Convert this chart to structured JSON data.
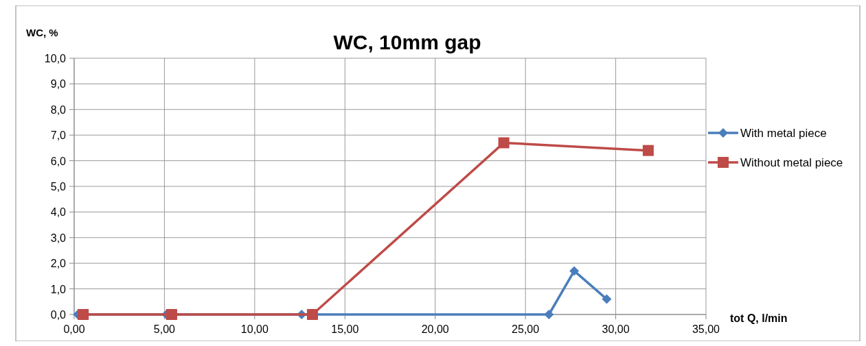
{
  "chart_data": {
    "type": "line",
    "title": "WC, 10mm gap",
    "xlabel": "tot Q, l/min",
    "ylabel": "WC, %",
    "xlim": [
      0,
      35
    ],
    "ylim": [
      0,
      10
    ],
    "xticks": [
      {
        "value": 0,
        "label": "0,00"
      },
      {
        "value": 5,
        "label": "5,00"
      },
      {
        "value": 10,
        "label": "10,00"
      },
      {
        "value": 15,
        "label": "15,00"
      },
      {
        "value": 20,
        "label": "20,00"
      },
      {
        "value": 25,
        "label": "25,00"
      },
      {
        "value": 30,
        "label": "30,00"
      },
      {
        "value": 35,
        "label": "35,00"
      }
    ],
    "yticks": [
      {
        "value": 0,
        "label": "0,0"
      },
      {
        "value": 1,
        "label": "1,0"
      },
      {
        "value": 2,
        "label": "2,0"
      },
      {
        "value": 3,
        "label": "3,0"
      },
      {
        "value": 4,
        "label": "4,0"
      },
      {
        "value": 5,
        "label": "5,0"
      },
      {
        "value": 6,
        "label": "6,0"
      },
      {
        "value": 7,
        "label": "7,0"
      },
      {
        "value": 8,
        "label": "8,0"
      },
      {
        "value": 9,
        "label": "9,0"
      },
      {
        "value": 10,
        "label": "10,0"
      }
    ],
    "grid": true,
    "legend": "right",
    "series": [
      {
        "name": "With metal piece",
        "color": "#4a7ebb",
        "marker": "diamond",
        "x": [
          0.2,
          5.1,
          12.6,
          26.3,
          27.7,
          29.5
        ],
        "values": [
          0,
          0,
          0,
          0,
          1.7,
          0.6
        ]
      },
      {
        "name": "Without metal piece",
        "color": "#be4b48",
        "marker": "square",
        "x": [
          0.5,
          5.4,
          13.2,
          23.8,
          31.8
        ],
        "values": [
          0,
          0,
          0,
          6.7,
          6.4
        ]
      }
    ]
  }
}
